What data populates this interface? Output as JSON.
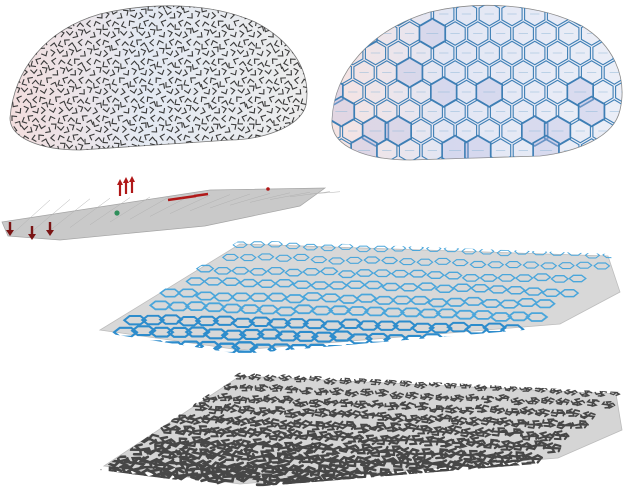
{
  "figure": {
    "panels": [
      {
        "id": "planar-linkage-pattern",
        "line_color": "#3a3a3a",
        "fill_left": "#f3dede",
        "fill_mid": "#e4eaf3",
        "fill_right": "#ececec"
      },
      {
        "id": "planar-tiling-graph",
        "line_color": "#3e7fb5",
        "fill_left": "#f6e4e2",
        "fill_mid": "#e2e6f4",
        "fill_right": "#ebeef7"
      },
      {
        "id": "deformed-surface-with-forces",
        "surface_color": "#c9c9c9",
        "arrow_color": "#b01818",
        "point_color": "#2f8f5b"
      },
      {
        "id": "deployed-graph-surface",
        "surface_color": "#d8d8d8",
        "line_color": "#4aa6db"
      },
      {
        "id": "deployed-linkage-surface",
        "surface_color": "#d5d5d5",
        "line_color": "#474747"
      }
    ]
  }
}
